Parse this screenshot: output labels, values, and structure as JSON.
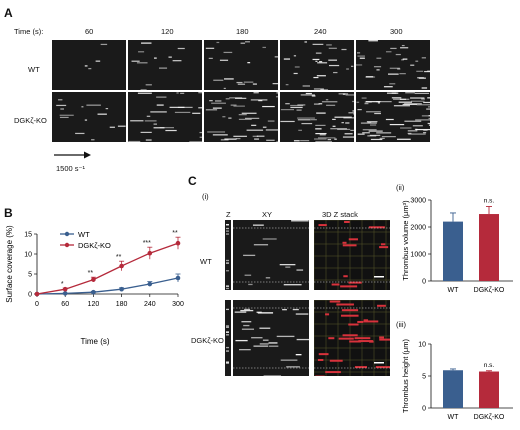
{
  "panelA": {
    "letter": "A",
    "time_label": "Time (s):",
    "times": [
      "60",
      "120",
      "180",
      "240",
      "300"
    ],
    "rows": [
      "WT",
      "DGKζ-KO"
    ],
    "scale_label": "1500 s⁻¹"
  },
  "panelB": {
    "letter": "B",
    "ylabel": "Surface coverage (%)",
    "xlabel": "Time (s)",
    "legend": [
      "WT",
      "DGKζ-KO"
    ],
    "sig_marks": [
      "*",
      "**",
      "**",
      "***",
      "**"
    ]
  },
  "panelC": {
    "letter": "C",
    "sub_i": "(i)",
    "sub_ii": "(ii)",
    "sub_iii": "(iii)",
    "col_z": "Z",
    "col_xy": "XY",
    "col_3d": "3D Z stack",
    "rows": [
      "WT",
      "DGKζ-KO"
    ],
    "ns": "n.s."
  },
  "colors": {
    "wt": "#3a5f8f",
    "ko": "#b52a3b"
  },
  "chart_data": [
    {
      "type": "line",
      "xlabel": "Time (s)",
      "ylabel": "Surface coverage (%)",
      "x": [
        0,
        60,
        120,
        180,
        240,
        300
      ],
      "xlim": [
        0,
        300
      ],
      "ylim": [
        0,
        15
      ],
      "yticks": [
        0,
        5,
        10,
        15
      ],
      "series": [
        {
          "name": "WT",
          "values": [
            0,
            0.15,
            0.45,
            1.2,
            2.5,
            4.0
          ],
          "err": [
            0,
            0.1,
            0.2,
            0.35,
            0.6,
            1.0
          ]
        },
        {
          "name": "DGKζ-KO",
          "values": [
            0,
            1.2,
            3.6,
            7.0,
            10.2,
            12.7
          ],
          "err": [
            0,
            0.3,
            0.6,
            1.2,
            1.5,
            1.5
          ]
        }
      ]
    },
    {
      "type": "bar",
      "ylabel": "Thrombus volume (μm³)",
      "categories": [
        "WT",
        "DGKζ-KO"
      ],
      "values": [
        2200,
        2480
      ],
      "err": [
        320,
        280
      ],
      "ylim": [
        0,
        3000
      ],
      "yticks": [
        0,
        1000,
        2000,
        3000
      ]
    },
    {
      "type": "bar",
      "ylabel": "Thrombus height (μm)",
      "categories": [
        "WT",
        "DGKζ-KO"
      ],
      "values": [
        5.9,
        5.7
      ],
      "err": [
        0.2,
        0.12
      ],
      "ylim": [
        0,
        10
      ],
      "yticks": [
        0,
        5,
        10
      ]
    }
  ]
}
